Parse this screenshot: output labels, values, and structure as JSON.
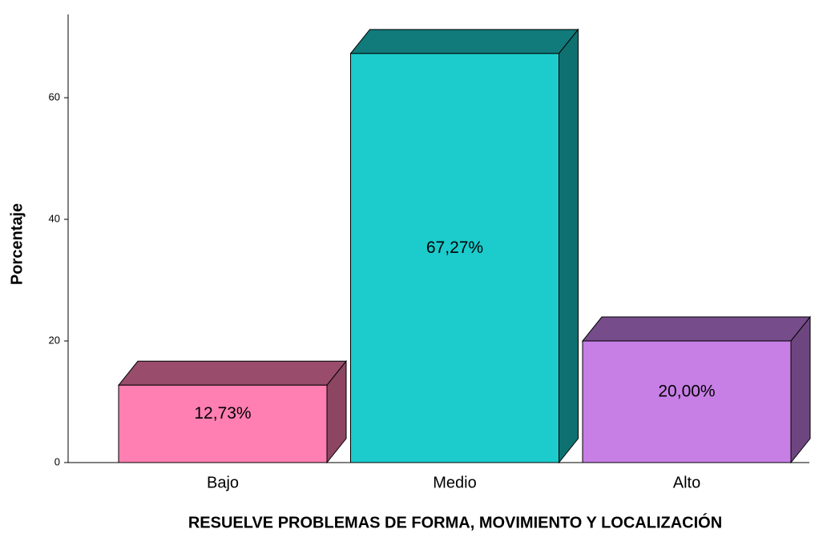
{
  "chart_data": {
    "type": "bar3d",
    "xlabel": "RESUELVE PROBLEMAS DE FORMA, MOVIMIENTO Y LOCALIZACIÓN",
    "ylabel": "Porcentaje",
    "categories": [
      "Bajo",
      "Medio",
      "Alto"
    ],
    "values": [
      12.73,
      67.27,
      20.0
    ],
    "value_labels": [
      "12,73%",
      "67,27%",
      "20,00%"
    ],
    "colors": [
      "#ff7fb2",
      "#1ccccc",
      "#c77fe6"
    ],
    "ylim": [
      0,
      73.7
    ],
    "yticks": [
      0,
      20,
      40,
      60
    ]
  }
}
